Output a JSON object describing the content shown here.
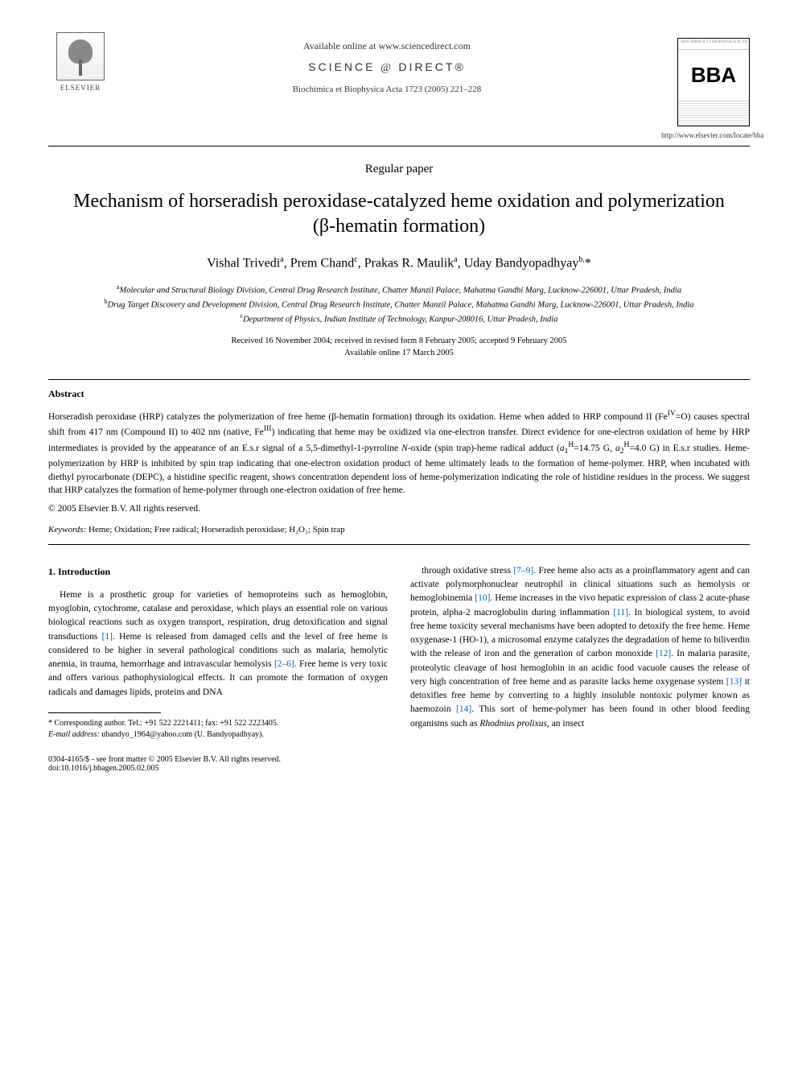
{
  "header": {
    "available_online": "Available online at www.sciencedirect.com",
    "sciencedirect_prefix": "SCIENCE",
    "sciencedirect_suffix": "DIRECT®",
    "journal_ref": "Biochimica et Biophysica Acta 1723 (2005) 221–228",
    "elsevier_label": "ELSEVIER",
    "bba_top": "BIOCHIMICA ET BIOPHYSICA ACTA",
    "bba_letters": "BBA",
    "bba_url": "http://www.elsevier.com/locate/bba"
  },
  "paper_type": "Regular paper",
  "title": "Mechanism of horseradish peroxidase-catalyzed heme oxidation and polymerization (β-hematin formation)",
  "authors_html": "Vishal Trivedi<sup>a</sup>, Prem Chand<sup>c</sup>, Prakas R. Maulik<sup>a</sup>, Uday Bandyopadhyay<sup>b,</sup>*",
  "affiliations": {
    "a": "Molecular and Structural Biology Division, Central Drug Research Institute, Chatter Manzil Palace, Mahatma Gandhi Marg, Lucknow-226001, Uttar Pradesh, India",
    "b": "Drug Target Discovery and Development Division, Central Drug Research Institute, Chatter Manzil Palace, Mahatma Gandhi Marg, Lucknow-226001, Uttar Pradesh, India",
    "c": "Department of Physics, Indian Institute of Technology, Kanpur-208016, Uttar Pradesh, India"
  },
  "dates": {
    "received": "Received 16 November 2004; received in revised form 8 February 2005; accepted 9 February 2005",
    "available": "Available online 17 March 2005"
  },
  "abstract": {
    "heading": "Abstract",
    "text": "Horseradish peroxidase (HRP) catalyzes the polymerization of free heme (β-hematin formation) through its oxidation. Heme when added to HRP compound II (Fe^{IV}=O) causes spectral shift from 417 nm (Compound II) to 402 nm (native, Fe^{III}) indicating that heme may be oxidized via one-electron transfer. Direct evidence for one-electron oxidation of heme by HRP intermediates is provided by the appearance of an E.s.r signal of a 5,5-dimethyl-1-pyrroline N-oxide (spin trap)-heme radical adduct (a₁^H=14.75 G, a₂^H=4.0 G) in E.s.r studies. Heme-polymerization by HRP is inhibited by spin trap indicating that one-electron oxidation product of heme ultimately leads to the formation of heme-polymer. HRP, when incubated with diethyl pyrocarbonate (DEPC), a histidine specific reagent, shows concentration dependent loss of heme-polymerization indicating the role of histidine residues in the process. We suggest that HRP catalyzes the formation of heme-polymer through one-electron oxidation of free heme.",
    "copyright": "© 2005 Elsevier B.V. All rights reserved."
  },
  "keywords": {
    "label": "Keywords:",
    "text": " Heme; Oxidation; Free radical; Horseradish peroxidase; H₂O₂; Spin trap"
  },
  "intro": {
    "heading": "1. Introduction",
    "col1": "Heme is a prosthetic group for varieties of hemoproteins such as hemoglobin, myoglobin, cytochrome, catalase and peroxidase, which plays an essential role on various biological reactions such as oxygen transport, respiration, drug detoxification and signal transductions [1]. Heme is released from damaged cells and the level of free heme is considered to be higher in several pathological conditions such as malaria, hemolytic anemia, in trauma, hemorrhage and intravascular hemolysis [2–6]. Free heme is very toxic and offers various pathophysiological effects. It can promote the formation of oxygen radicals and damages lipids, proteins and DNA",
    "col2": "through oxidative stress [7–9]. Free heme also acts as a proinflammatory agent and can activate polymorphonuclear neutrophil in clinical situations such as hemolysis or hemoglobinemia [10]. Heme increases in the vivo hepatic expression of class 2 acute-phase protein, alpha-2 macroglobulin during inflammation [11]. In biological system, to avoid free heme toxicity several mechanisms have been adopted to detoxify the free heme. Heme oxygenase-1 (HO-1), a microsomal enzyme catalyzes the degradation of heme to biliverdin with the release of iron and the generation of carbon monoxide [12]. In malaria parasite, proteolytic cleavage of host hemoglobin in an acidic food vacuole causes the release of very high concentration of free heme and as parasite lacks heme oxygenase system [13] it detoxifies free heme by converting to a highly insoluble nontoxic polymer known as haemozoin [14]. This sort of heme-polymer has been found in other blood feeding organisms such as Rhodnius prolixus, an insect"
  },
  "footnotes": {
    "corresponding": "* Corresponding author. Tel.: +91 522 2221411; fax: +91 522 2223405.",
    "email_label": "E-mail address:",
    "email": " ubandyo_1964@yahoo.com (U. Bandyopadhyay)."
  },
  "footer": {
    "left1": "0304-4165/$ - see front matter © 2005 Elsevier B.V. All rights reserved.",
    "left2": "doi:10.1016/j.bbagen.2005.02.005"
  },
  "colors": {
    "citation": "#0066cc",
    "text": "#000000",
    "bg": "#ffffff"
  }
}
